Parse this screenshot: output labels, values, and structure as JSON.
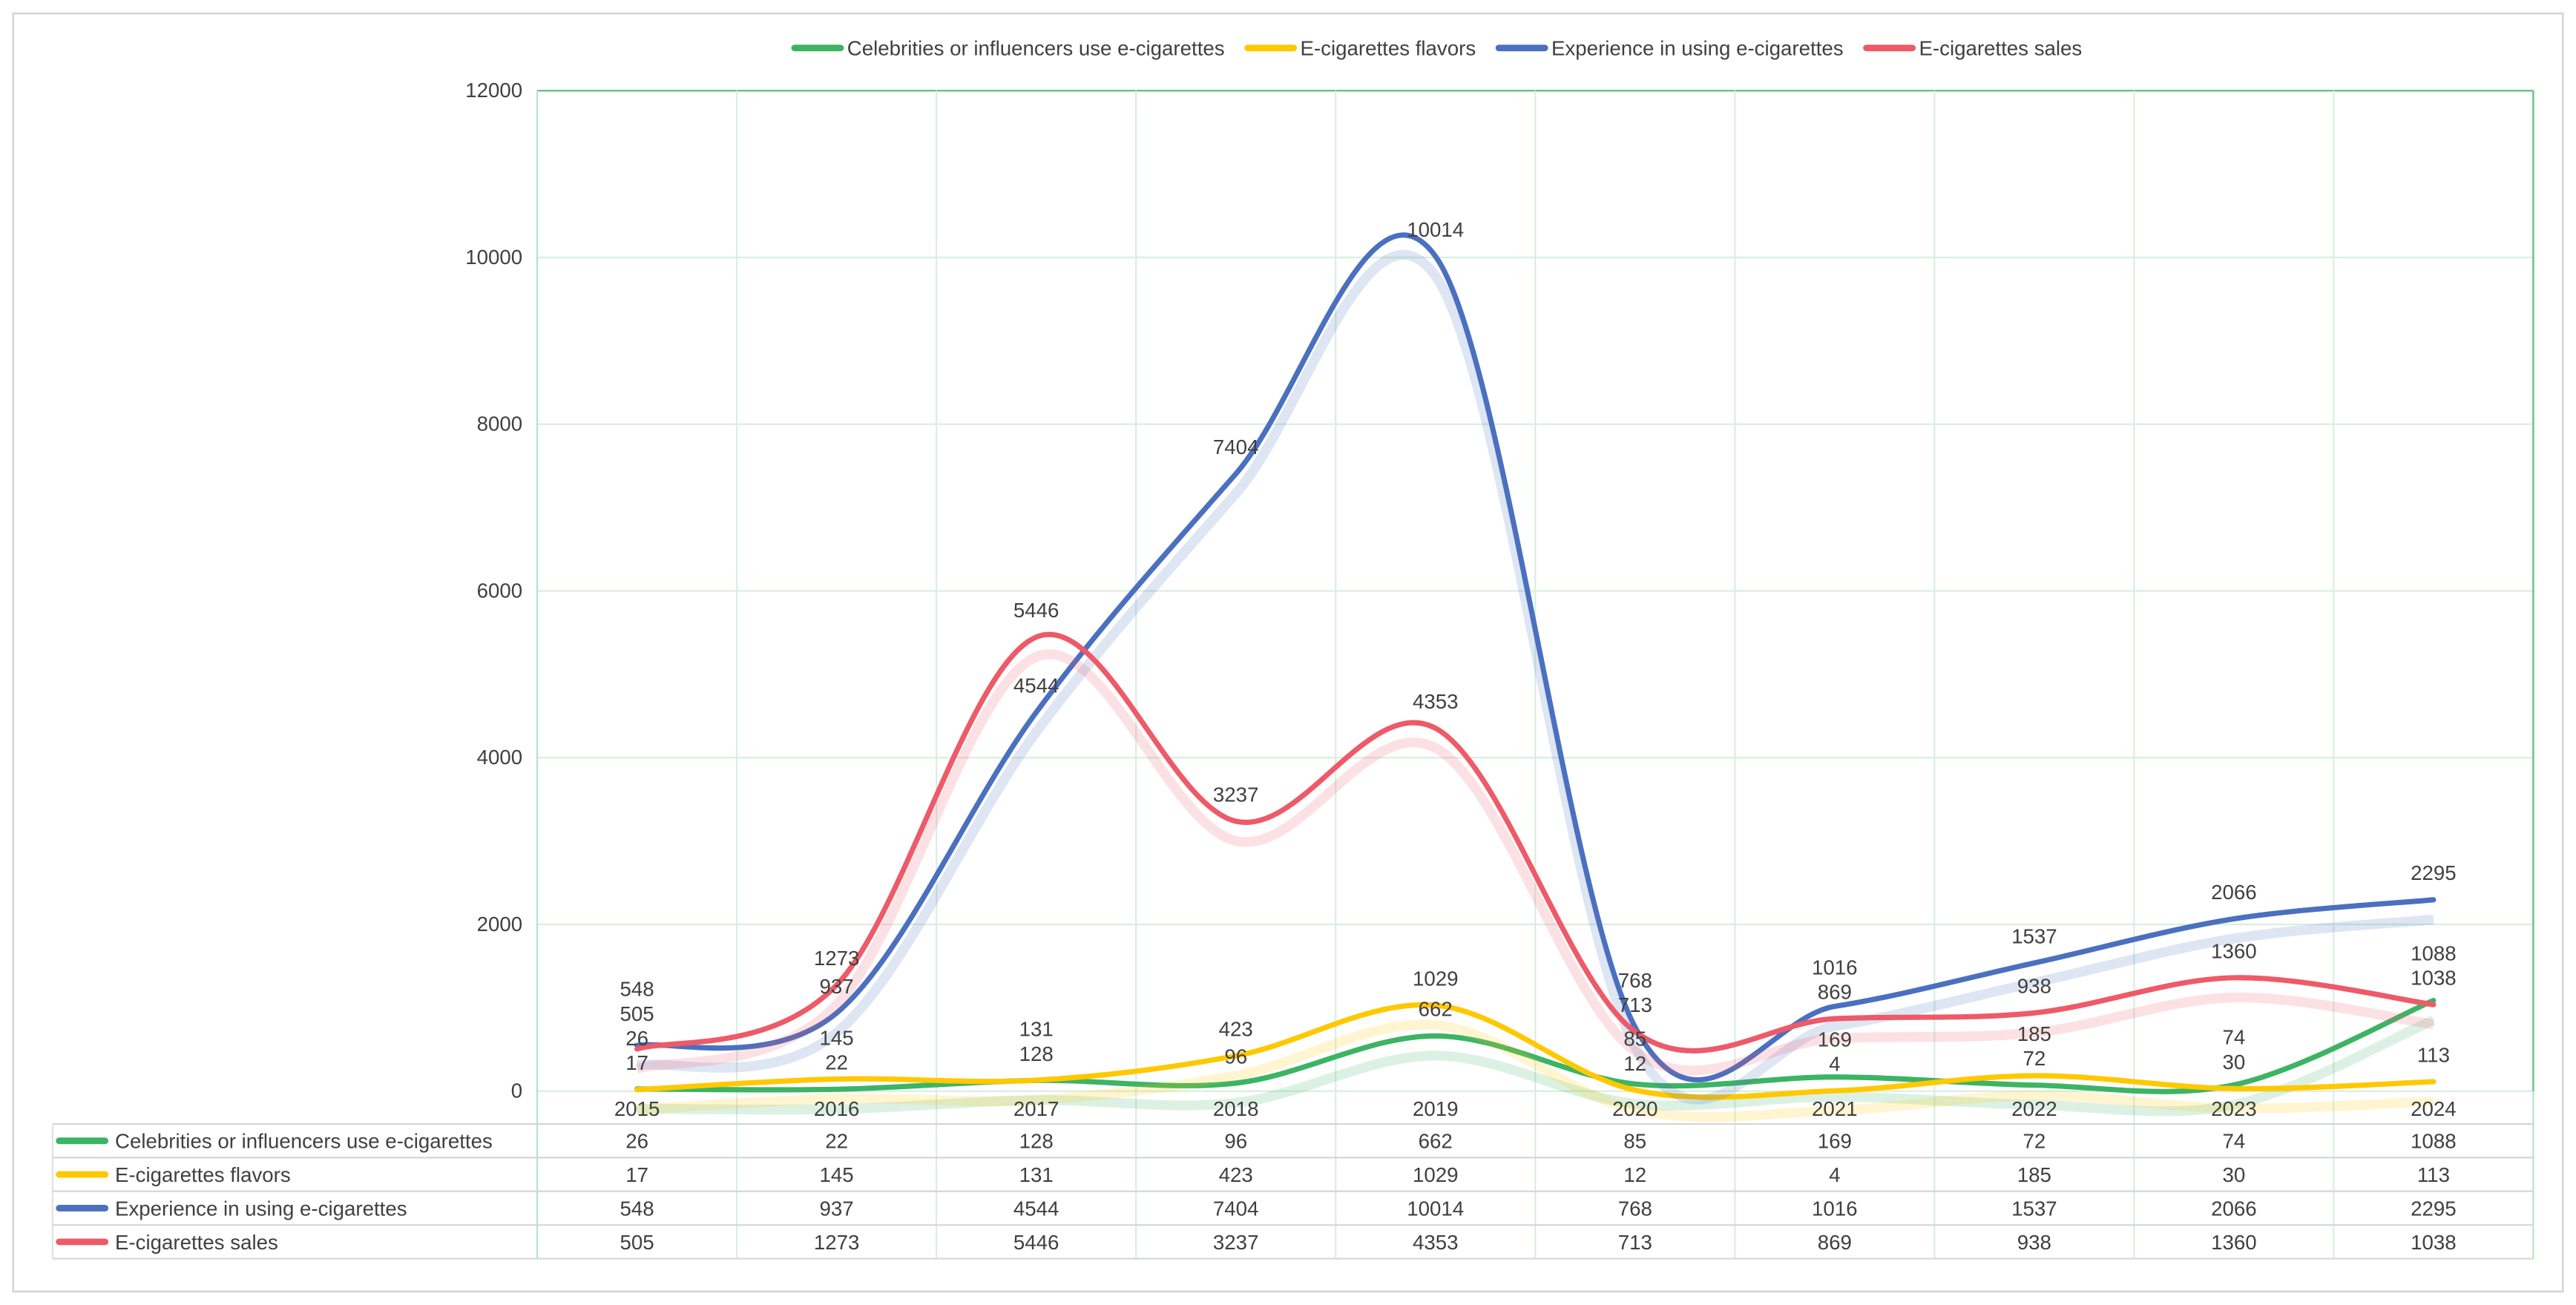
{
  "chart_data": {
    "type": "line",
    "title": "",
    "xlabel": "",
    "ylabel": "",
    "ylim": [
      0,
      12000
    ],
    "yticks": [
      0,
      2000,
      4000,
      6000,
      8000,
      10000,
      12000
    ],
    "grid": true,
    "smooth": true,
    "legend_position": "top",
    "categories": [
      "2015",
      "2016",
      "2017",
      "2018",
      "2019",
      "2020",
      "2021",
      "2022",
      "2023",
      "2024"
    ],
    "series": [
      {
        "name": "Celebrities or influencers use e-cigarettes",
        "color": "#3cb464",
        "values": [
          26,
          22,
          128,
          96,
          662,
          85,
          169,
          72,
          74,
          1088
        ]
      },
      {
        "name": "E-cigarettes flavors",
        "color": "#ffc800",
        "values": [
          17,
          145,
          131,
          423,
          1029,
          12,
          4,
          185,
          30,
          113
        ]
      },
      {
        "name": "Experience in using e-cigarettes",
        "color": "#4a70bf",
        "values": [
          548,
          937,
          4544,
          7404,
          10014,
          768,
          1016,
          1537,
          2066,
          2295
        ]
      },
      {
        "name": "E-cigarettes sales",
        "color": "#ee5a68",
        "values": [
          505,
          1273,
          5446,
          3237,
          4353,
          713,
          869,
          938,
          1360,
          1038
        ]
      }
    ],
    "data_table": true
  }
}
